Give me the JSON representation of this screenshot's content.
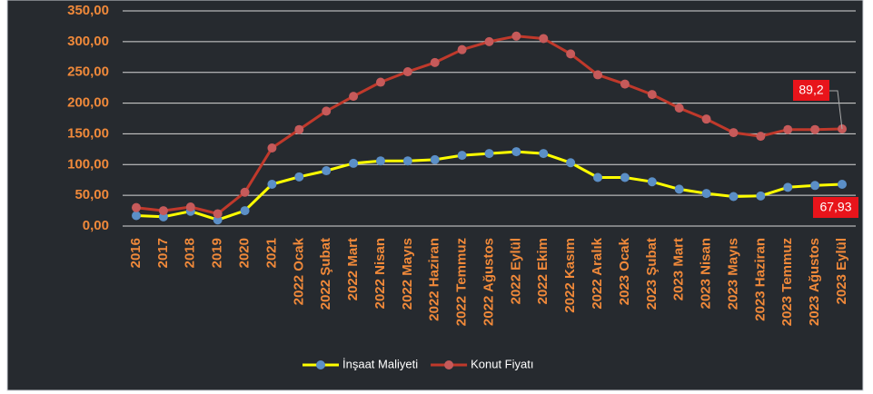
{
  "chart_data": {
    "type": "line",
    "categories": [
      "2016",
      "2017",
      "2018",
      "2019",
      "2020",
      "2021",
      "2022 Ocak",
      "2022 Şubat",
      "2022 Mart",
      "2022 Nisan",
      "2022 Mayıs",
      "2022 Haziran",
      "2022 Temmuz",
      "2022 Ağustos",
      "2022 Eylül",
      "2022 Ekim",
      "2022 Kasım",
      "2022 Aralık",
      "2023 Ocak",
      "2023 Şubat",
      "2023 Mart",
      "2023 Nisan",
      "2023 Mayıs",
      "2023 Haziran",
      "2023 Temmuz",
      "2023 Ağustos",
      "2023 Eylül"
    ],
    "series": [
      {
        "name": "İnşaat Maliyeti",
        "color": "#ffff00",
        "marker_color": "#5b8fc7",
        "values": [
          17,
          15,
          24,
          10,
          25,
          68,
          80,
          90,
          102,
          106,
          106,
          108,
          115,
          118,
          121,
          118,
          103,
          79,
          79,
          72,
          60,
          53,
          48,
          49,
          63,
          66,
          67.93
        ]
      },
      {
        "name": "Konut Fiyatı",
        "color": "#c0392b",
        "marker_color": "#c65a5a",
        "values": [
          30,
          25,
          31,
          20,
          55,
          127,
          157,
          187,
          211,
          234,
          251,
          266,
          287,
          300,
          309,
          305,
          280,
          246,
          231,
          214,
          192,
          174,
          152,
          146,
          157,
          157,
          158
        ]
      }
    ],
    "annotations": [
      "89,2",
      "67,93"
    ],
    "ylim": [
      0,
      350
    ],
    "yticks": [
      {
        "value": 0,
        "label": "0,00"
      },
      {
        "value": 50,
        "label": "50,00"
      },
      {
        "value": 100,
        "label": "100,00"
      },
      {
        "value": 150,
        "label": "150,00"
      },
      {
        "value": 200,
        "label": "200,00"
      },
      {
        "value": 250,
        "label": "250,00"
      },
      {
        "value": 300,
        "label": "300,00"
      },
      {
        "value": 350,
        "label": "350,00"
      }
    ],
    "grid": true
  }
}
